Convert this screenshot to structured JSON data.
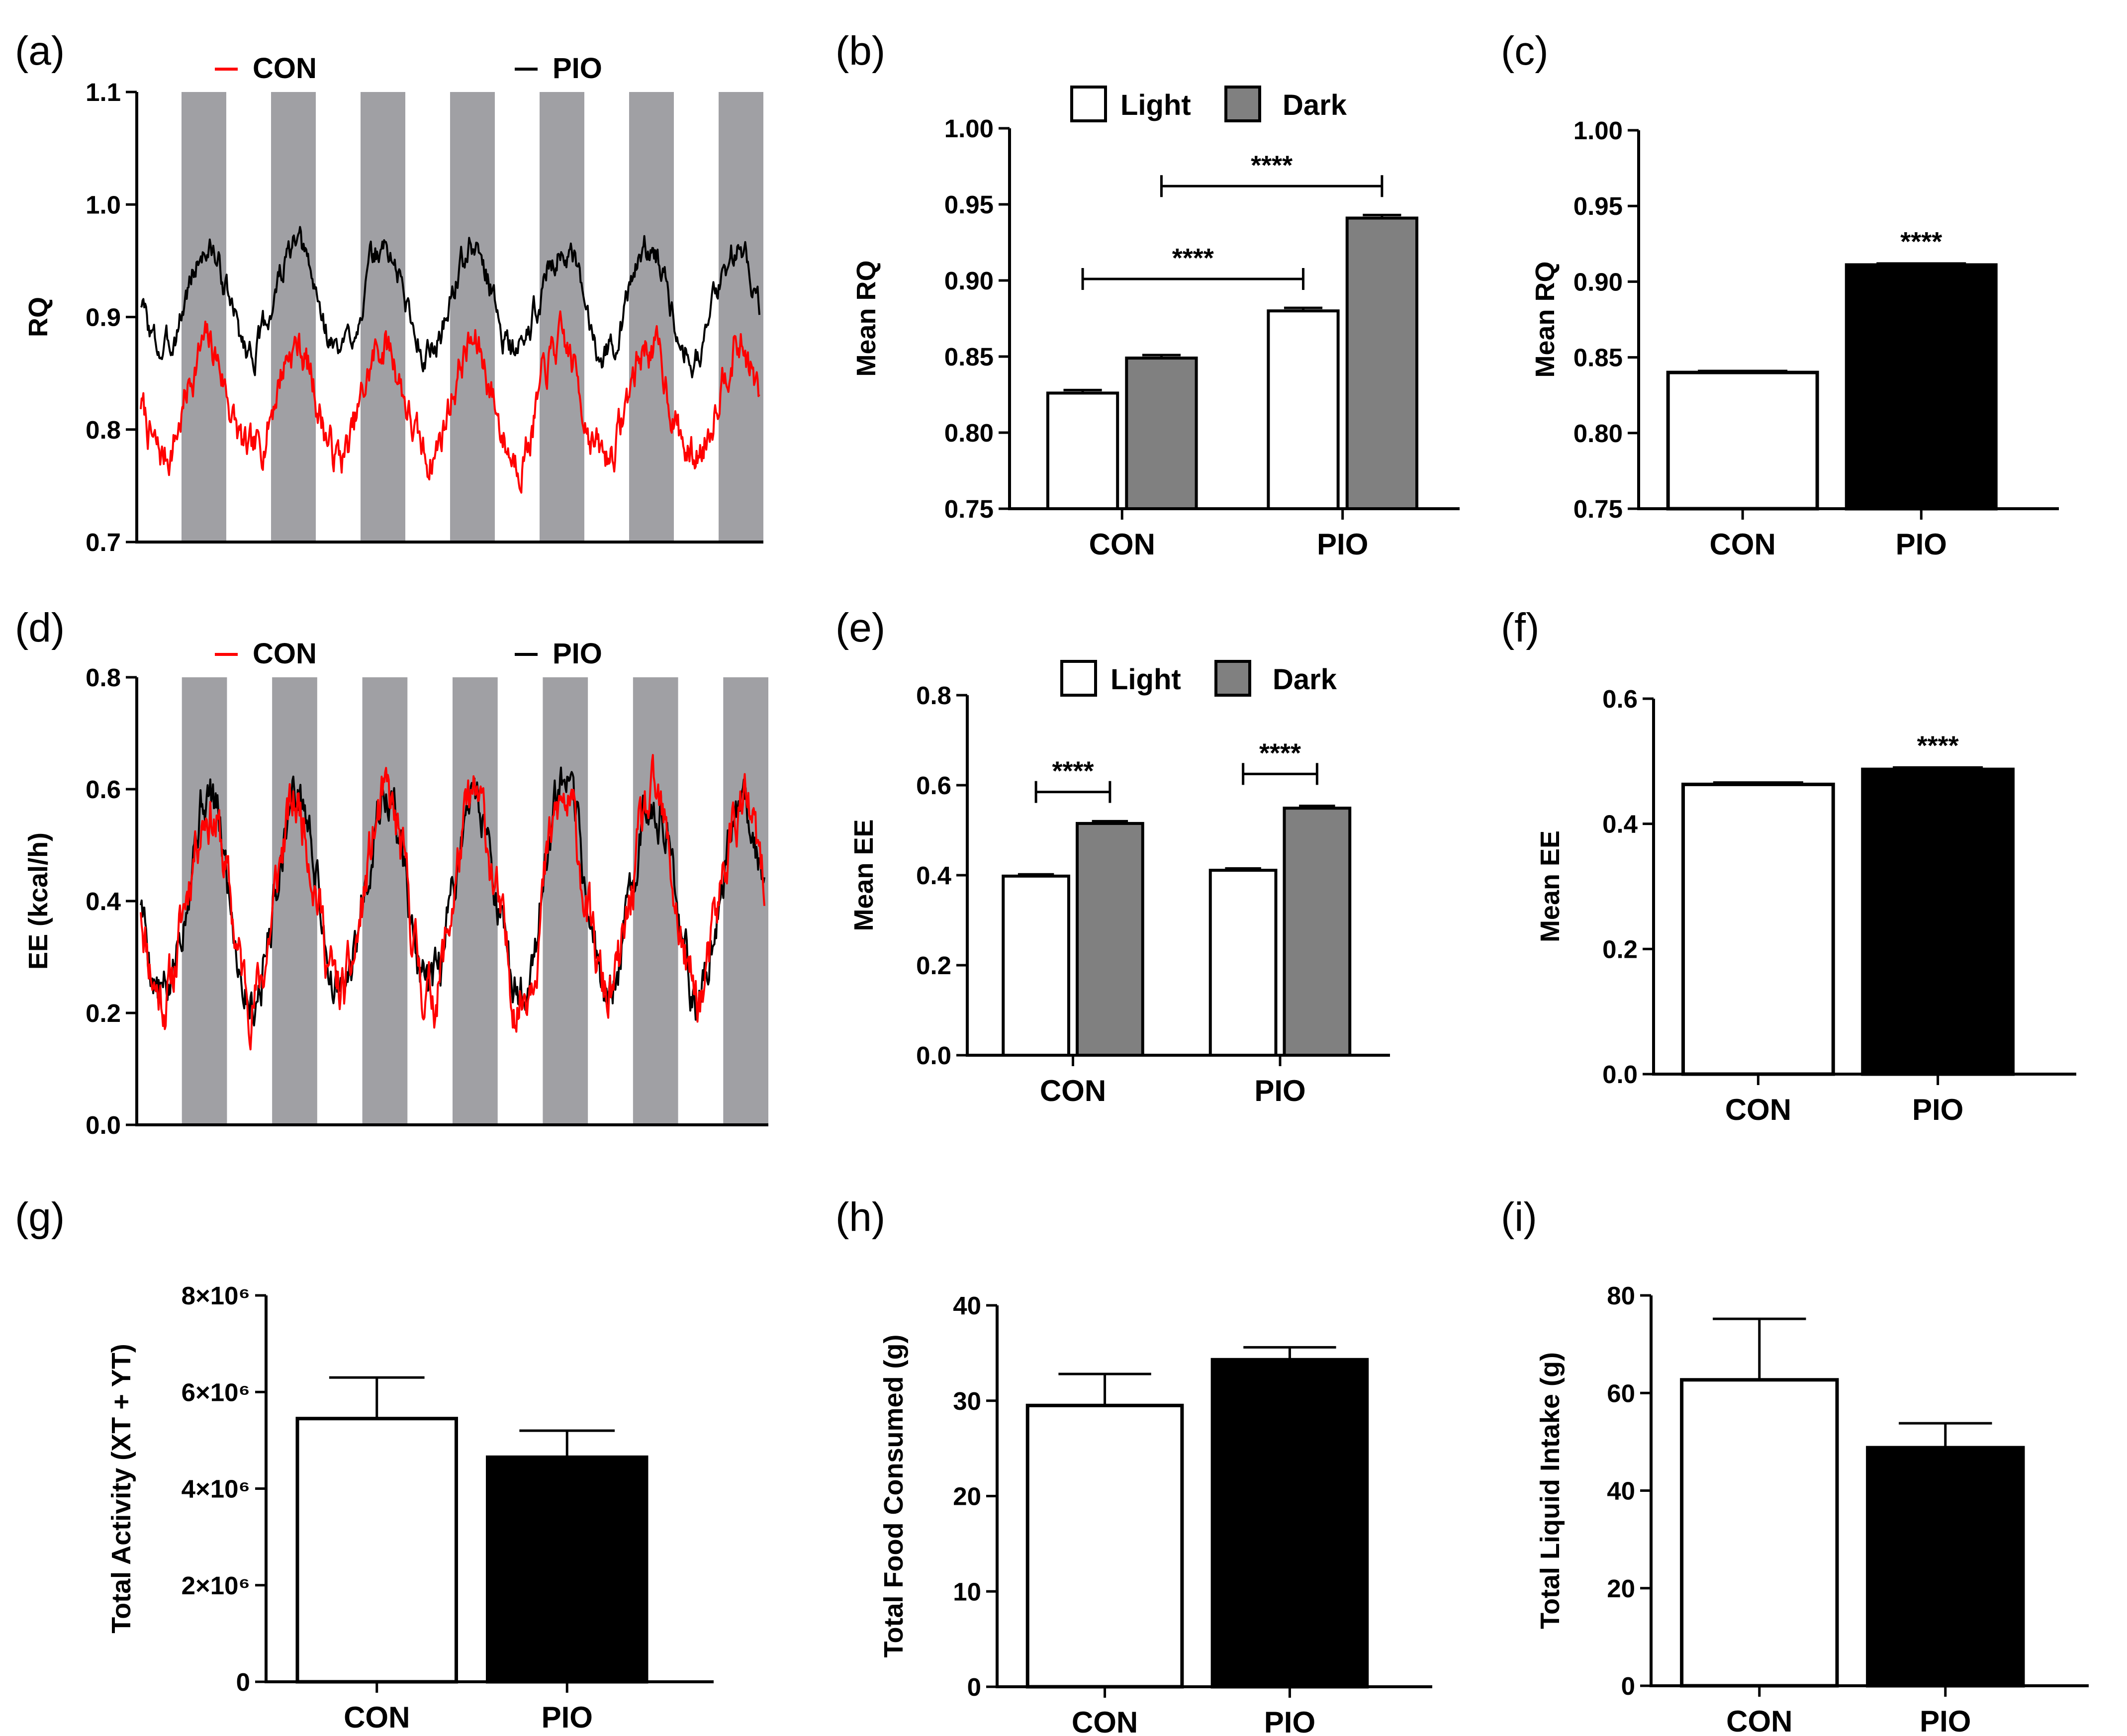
{
  "chart_data": [
    {
      "panel": "(a)",
      "type": "line",
      "ylabel": "RQ",
      "yticks": [
        "0.7",
        "0.8",
        "0.9",
        "1.0",
        "1.1"
      ],
      "ylim": [
        0.7,
        1.1
      ],
      "dark_periods": 7,
      "legend": [
        "CON",
        "PIO"
      ],
      "series": [
        {
          "name": "CON",
          "color": "#ff0000",
          "baseline": 0.825,
          "amp": 0.05,
          "noise": 0.012,
          "seed": 7,
          "points": 700
        },
        {
          "name": "PIO",
          "color": "#000000",
          "baseline": 0.915,
          "amp": 0.045,
          "noise": 0.009,
          "seed": 3,
          "points": 700
        }
      ]
    },
    {
      "panel": "(b)",
      "type": "bar",
      "ylabel": "Mean RQ",
      "yticks": [
        "0.75",
        "0.80",
        "0.85",
        "0.90",
        "0.95",
        "1.00"
      ],
      "ylim": [
        0.75,
        1.0
      ],
      "categories": [
        "CON",
        "PIO"
      ],
      "legend": [
        "Light",
        "Dark"
      ],
      "series": [
        {
          "name": "Light",
          "color": "#ffffff",
          "values": [
            0.826,
            0.88
          ],
          "errors": [
            0.002,
            0.002
          ]
        },
        {
          "name": "Dark",
          "color": "#808080",
          "values": [
            0.849,
            0.941
          ],
          "errors": [
            0.002,
            0.002
          ]
        }
      ],
      "significance": [
        {
          "label": "****",
          "from": "CON-Light",
          "to": "PIO-Light",
          "y": 0.901
        },
        {
          "label": "****",
          "from": "CON-Dark",
          "to": "PIO-Dark",
          "y": 0.962
        }
      ]
    },
    {
      "panel": "(c)",
      "type": "bar",
      "ylabel": "Mean RQ",
      "yticks": [
        "0.75",
        "0.80",
        "0.85",
        "0.90",
        "0.95",
        "1.00"
      ],
      "ylim": [
        0.75,
        1.0
      ],
      "categories": [
        "CON",
        "PIO"
      ],
      "colors": [
        "#ffffff",
        "#000000"
      ],
      "values": [
        0.84,
        0.911
      ],
      "errors": [
        0.001,
        0.001
      ],
      "significance": [
        "",
        "****"
      ]
    },
    {
      "panel": "(d)",
      "type": "line",
      "ylabel": "EE (kcal/h)",
      "yticks": [
        "0.0",
        "0.2",
        "0.4",
        "0.6",
        "0.8"
      ],
      "ylim": [
        0.0,
        0.8
      ],
      "dark_periods": 7,
      "legend": [
        "CON",
        "PIO"
      ],
      "series": [
        {
          "name": "CON",
          "color": "#ff0000",
          "baseline": 0.4,
          "amp": 0.17,
          "noise": 0.035,
          "seed": 11,
          "points": 700
        },
        {
          "name": "PIO",
          "color": "#000000",
          "baseline": 0.41,
          "amp": 0.18,
          "noise": 0.03,
          "seed": 5,
          "points": 700
        }
      ]
    },
    {
      "panel": "(e)",
      "type": "bar",
      "ylabel": "Mean EE",
      "yticks": [
        "0.0",
        "0.2",
        "0.4",
        "0.6",
        "0.8"
      ],
      "ylim": [
        0.0,
        0.8
      ],
      "categories": [
        "CON",
        "PIO"
      ],
      "legend": [
        "Light",
        "Dark"
      ],
      "series": [
        {
          "name": "Light",
          "color": "#ffffff",
          "values": [
            0.398,
            0.411
          ],
          "errors": [
            0.004,
            0.004
          ]
        },
        {
          "name": "Dark",
          "color": "#808080",
          "values": [
            0.515,
            0.549
          ],
          "errors": [
            0.005,
            0.005
          ]
        }
      ],
      "significance": [
        {
          "label": "****",
          "from": "CON-Light",
          "to": "CON-Dark",
          "y": 0.585
        },
        {
          "label": "****",
          "from": "PIO-Light",
          "to": "PIO-Dark",
          "y": 0.625
        }
      ]
    },
    {
      "panel": "(f)",
      "type": "bar",
      "ylabel": "Mean EE",
      "yticks": [
        "0.0",
        "0.2",
        "0.4",
        "0.6"
      ],
      "ylim": [
        0.0,
        0.6
      ],
      "categories": [
        "CON",
        "PIO"
      ],
      "colors": [
        "#ffffff",
        "#000000"
      ],
      "values": [
        0.463,
        0.487
      ],
      "errors": [
        0.003,
        0.003
      ],
      "significance": [
        "",
        "****"
      ]
    },
    {
      "panel": "(g)",
      "type": "bar",
      "ylabel": "Total Activity (XT + YT)",
      "yticks": [
        "0",
        "2×10⁶",
        "4×10⁶",
        "6×10⁶",
        "8×10⁶"
      ],
      "ylim": [
        0,
        8000000
      ],
      "categories": [
        "CON",
        "PIO"
      ],
      "colors": [
        "#ffffff",
        "#000000"
      ],
      "values": [
        5450000,
        4650000
      ],
      "errors": [
        850000,
        550000
      ]
    },
    {
      "panel": "(h)",
      "type": "bar",
      "ylabel": "Total  Food Consumed (g)",
      "yticks": [
        "0",
        "10",
        "20",
        "30",
        "40"
      ],
      "ylim": [
        0,
        40
      ],
      "categories": [
        "CON",
        "PIO"
      ],
      "colors": [
        "#ffffff",
        "#000000"
      ],
      "values": [
        29.5,
        34.3
      ],
      "errors": [
        3.3,
        1.3
      ]
    },
    {
      "panel": "(i)",
      "type": "bar",
      "ylabel": "Total Liquid Intake (g)",
      "yticks": [
        "0",
        "20",
        "40",
        "60",
        "80"
      ],
      "ylim": [
        0,
        80
      ],
      "categories": [
        "CON",
        "PIO"
      ],
      "colors": [
        "#ffffff",
        "#000000"
      ],
      "values": [
        62.7,
        48.8
      ],
      "errors": [
        12.5,
        5.0
      ]
    }
  ]
}
